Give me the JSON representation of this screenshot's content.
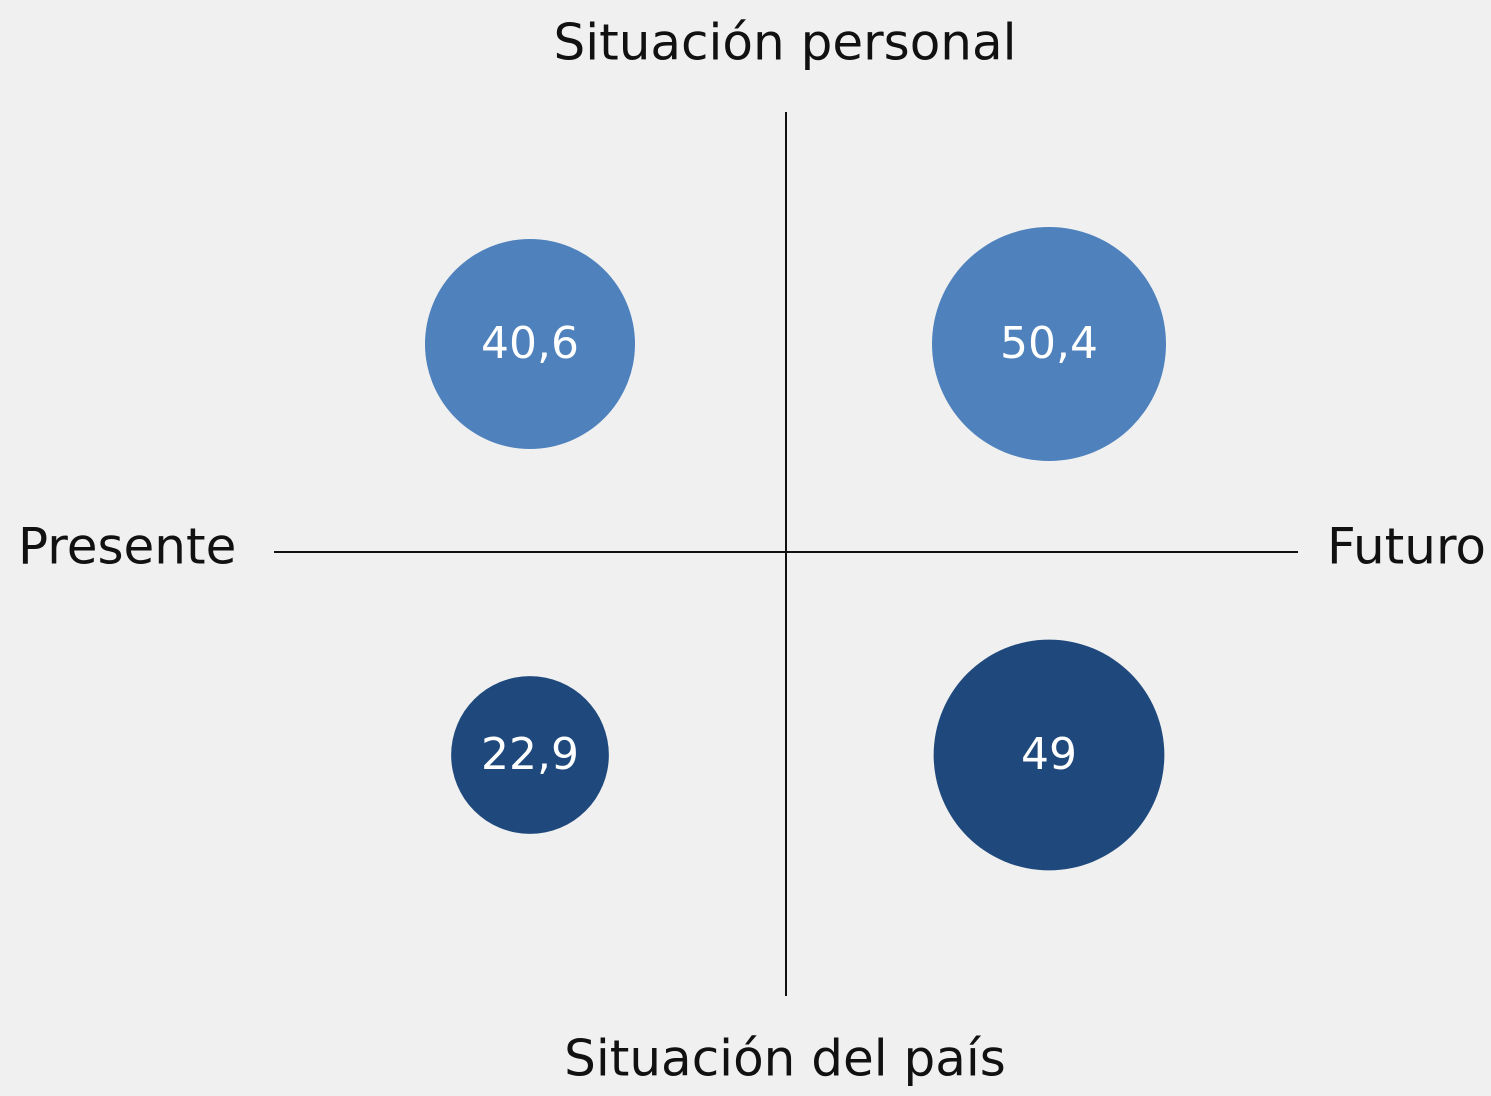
{
  "chart_data": {
    "type": "bubble",
    "top_label": "Situación personal",
    "bottom_label": "Situación del país",
    "left_label": "Presente",
    "right_label": "Futuro",
    "series": [
      {
        "color": "#4f81bd",
        "values": [
          40.6,
          50.4
        ],
        "value_labels": [
          "40,6",
          "50,4"
        ]
      },
      {
        "color": "#1f497d",
        "values": [
          22.9,
          49
        ],
        "value_labels": [
          "22,9",
          "49"
        ]
      }
    ]
  }
}
